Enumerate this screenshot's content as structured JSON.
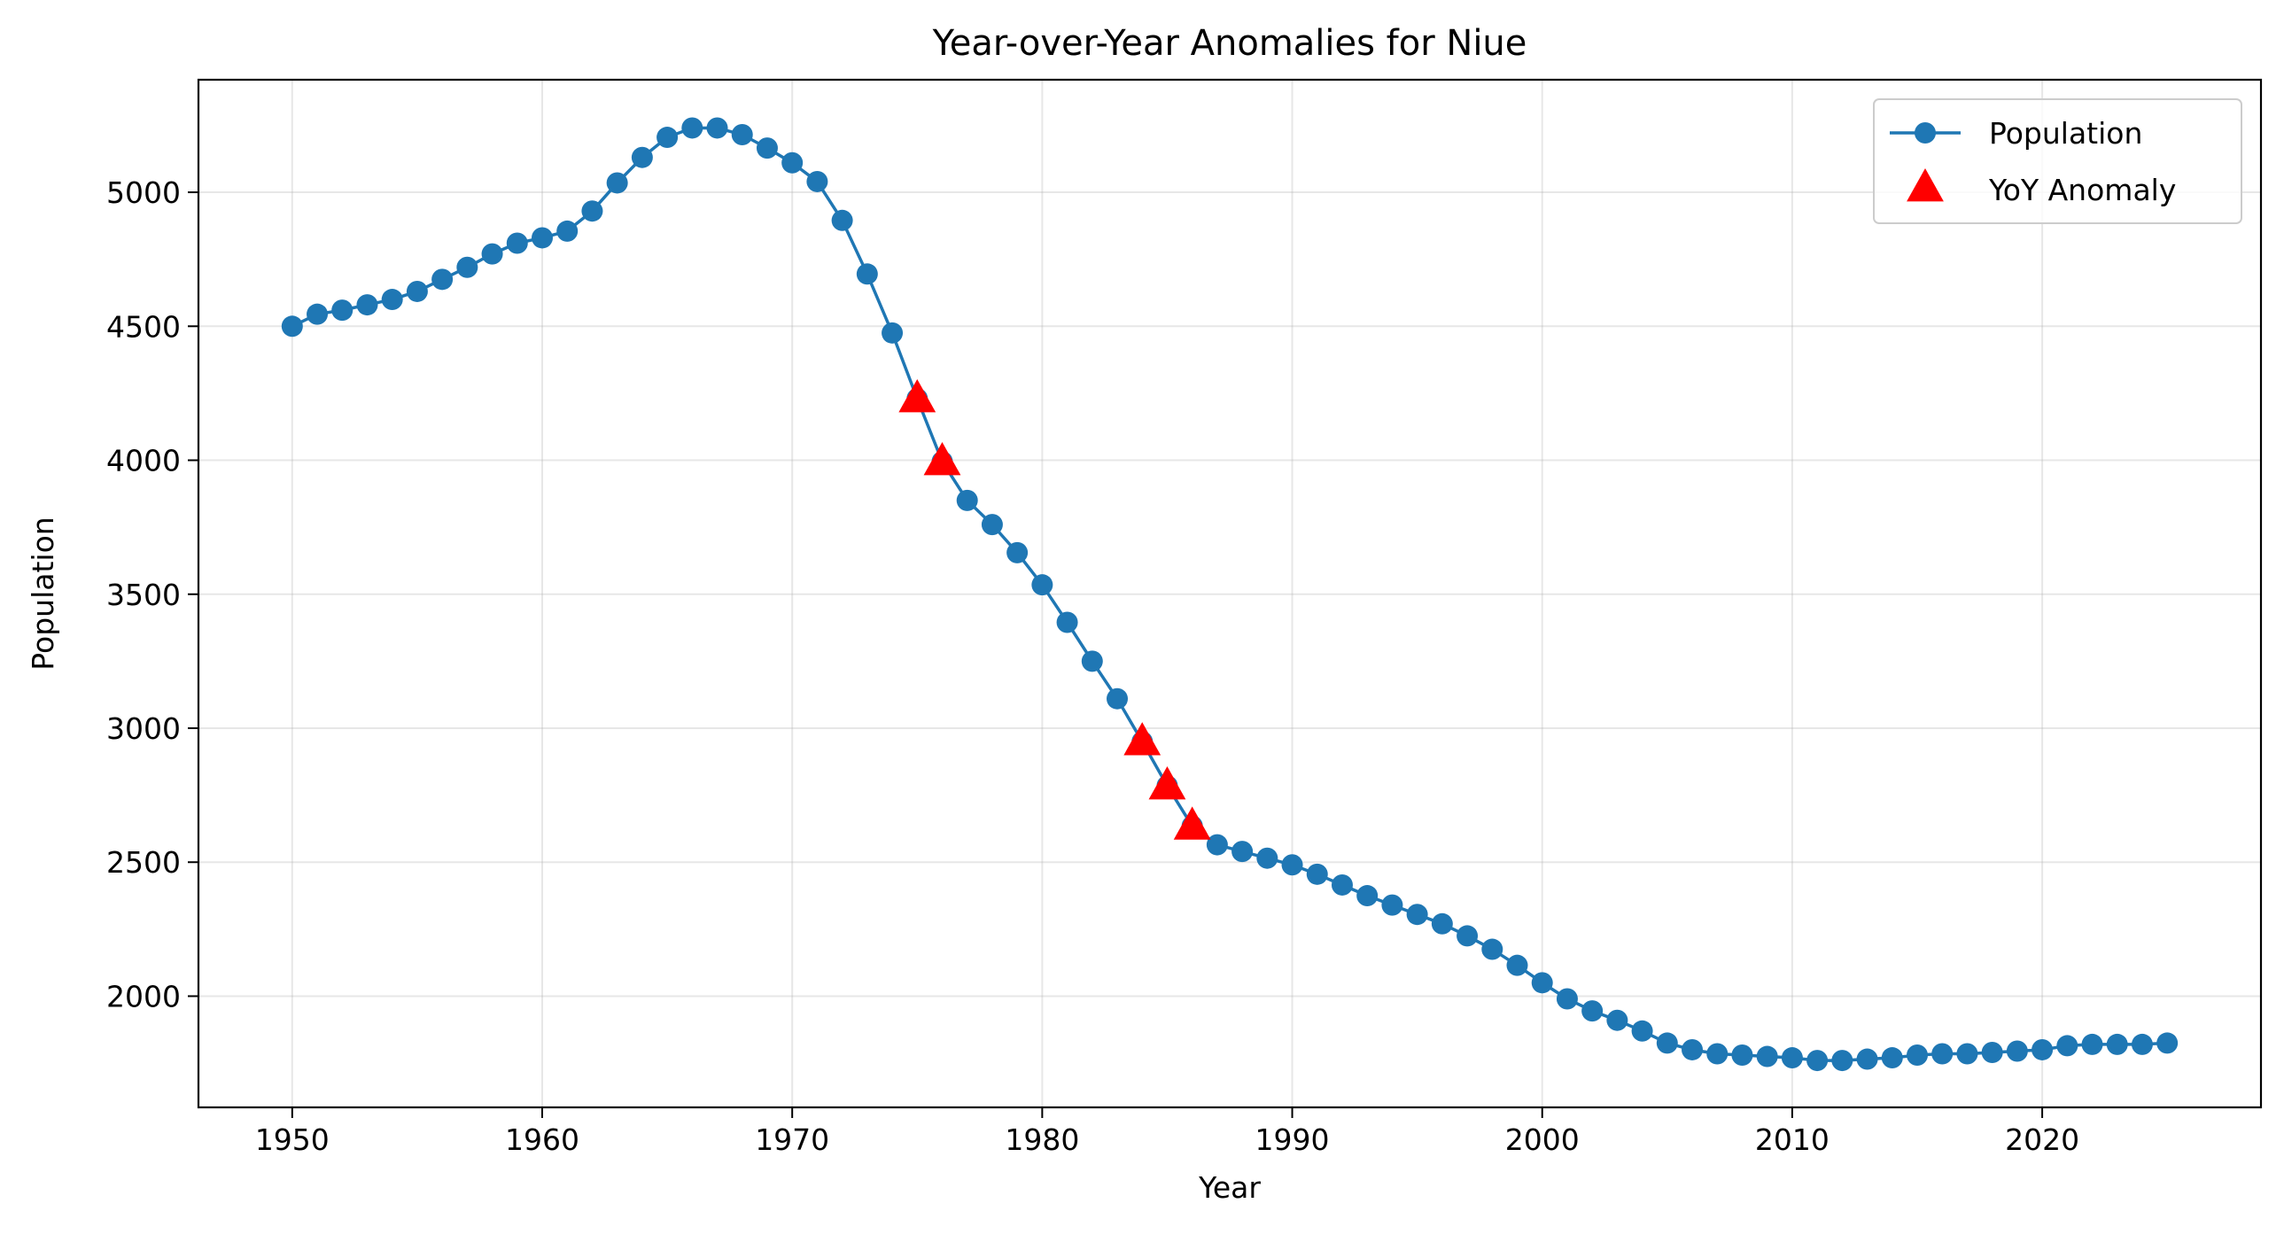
{
  "chart_data": {
    "type": "line",
    "title": "Year-over-Year Anomalies for Niue",
    "xlabel": "Year",
    "ylabel": "Population",
    "xlim": [
      1946.25,
      2028.75
    ],
    "ylim": [
      1585,
      5420
    ],
    "xticks": [
      1950,
      1960,
      1970,
      1980,
      1990,
      2000,
      2010,
      2020
    ],
    "yticks": [
      2000,
      2500,
      3000,
      3500,
      4000,
      4500,
      5000
    ],
    "grid": true,
    "legend_position": "top-right",
    "colors": {
      "population": "#1f77b4",
      "anomaly": "#ff0000"
    },
    "series": [
      {
        "name": "Population",
        "kind": "line-with-markers",
        "x": [
          1950,
          1951,
          1952,
          1953,
          1954,
          1955,
          1956,
          1957,
          1958,
          1959,
          1960,
          1961,
          1962,
          1963,
          1964,
          1965,
          1966,
          1967,
          1968,
          1969,
          1970,
          1971,
          1972,
          1973,
          1974,
          1975,
          1976,
          1977,
          1978,
          1979,
          1980,
          1981,
          1982,
          1983,
          1984,
          1985,
          1986,
          1987,
          1988,
          1989,
          1990,
          1991,
          1992,
          1993,
          1994,
          1995,
          1996,
          1997,
          1998,
          1999,
          2000,
          2001,
          2002,
          2003,
          2004,
          2005,
          2006,
          2007,
          2008,
          2009,
          2010,
          2011,
          2012,
          2013,
          2014,
          2015,
          2016,
          2017,
          2018,
          2019,
          2020,
          2021,
          2022,
          2023,
          2024,
          2025
        ],
        "y": [
          4500,
          4545,
          4560,
          4580,
          4600,
          4630,
          4675,
          4720,
          4770,
          4810,
          4830,
          4855,
          4930,
          5035,
          5130,
          5205,
          5240,
          5240,
          5215,
          5165,
          5110,
          5040,
          4895,
          4695,
          4475,
          4230,
          3995,
          3850,
          3760,
          3655,
          3535,
          3395,
          3250,
          3110,
          2950,
          2785,
          2635,
          2565,
          2540,
          2515,
          2490,
          2455,
          2415,
          2375,
          2340,
          2305,
          2270,
          2225,
          2175,
          2115,
          2050,
          1990,
          1945,
          1910,
          1870,
          1825,
          1800,
          1785,
          1780,
          1775,
          1770,
          1760,
          1760,
          1765,
          1770,
          1780,
          1785,
          1785,
          1790,
          1795,
          1800,
          1815,
          1820,
          1820,
          1820,
          1825
        ]
      },
      {
        "name": "YoY Anomaly",
        "kind": "scatter-triangle",
        "x": [
          1975,
          1976,
          1984,
          1985,
          1986
        ],
        "y": [
          4230,
          3995,
          2950,
          2785,
          2635
        ]
      }
    ]
  }
}
